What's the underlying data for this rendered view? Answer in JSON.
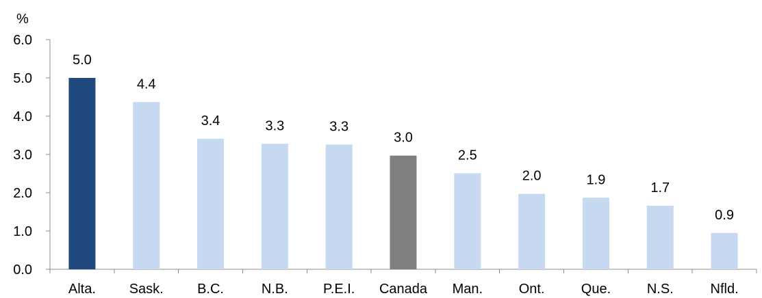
{
  "chart_data": {
    "type": "bar",
    "title": "",
    "xlabel": "",
    "ylabel": "%",
    "ylim": [
      0,
      6
    ],
    "yticks": [
      "0.0",
      "1.0",
      "2.0",
      "3.0",
      "4.0",
      "5.0",
      "6.0"
    ],
    "grid": false,
    "categories": [
      "Alta.",
      "Sask.",
      "B.C.",
      "N.B.",
      "P.E.I.",
      "Canada",
      "Man.",
      "Ont.",
      "Que.",
      "N.S.",
      "Nfld."
    ],
    "values": [
      5.0,
      4.37,
      3.41,
      3.28,
      3.26,
      2.97,
      2.51,
      1.97,
      1.87,
      1.66,
      0.95
    ],
    "data_labels": [
      "5.0",
      "4.4",
      "3.4",
      "3.3",
      "3.3",
      "3.0",
      "2.5",
      "2.0",
      "1.9",
      "1.7",
      "0.9"
    ],
    "bar_colors": [
      "#1f497d",
      "#c6d9f1",
      "#c6d9f1",
      "#c6d9f1",
      "#c6d9f1",
      "#808080",
      "#c6d9f1",
      "#c6d9f1",
      "#c6d9f1",
      "#c6d9f1",
      "#c6d9f1"
    ]
  }
}
